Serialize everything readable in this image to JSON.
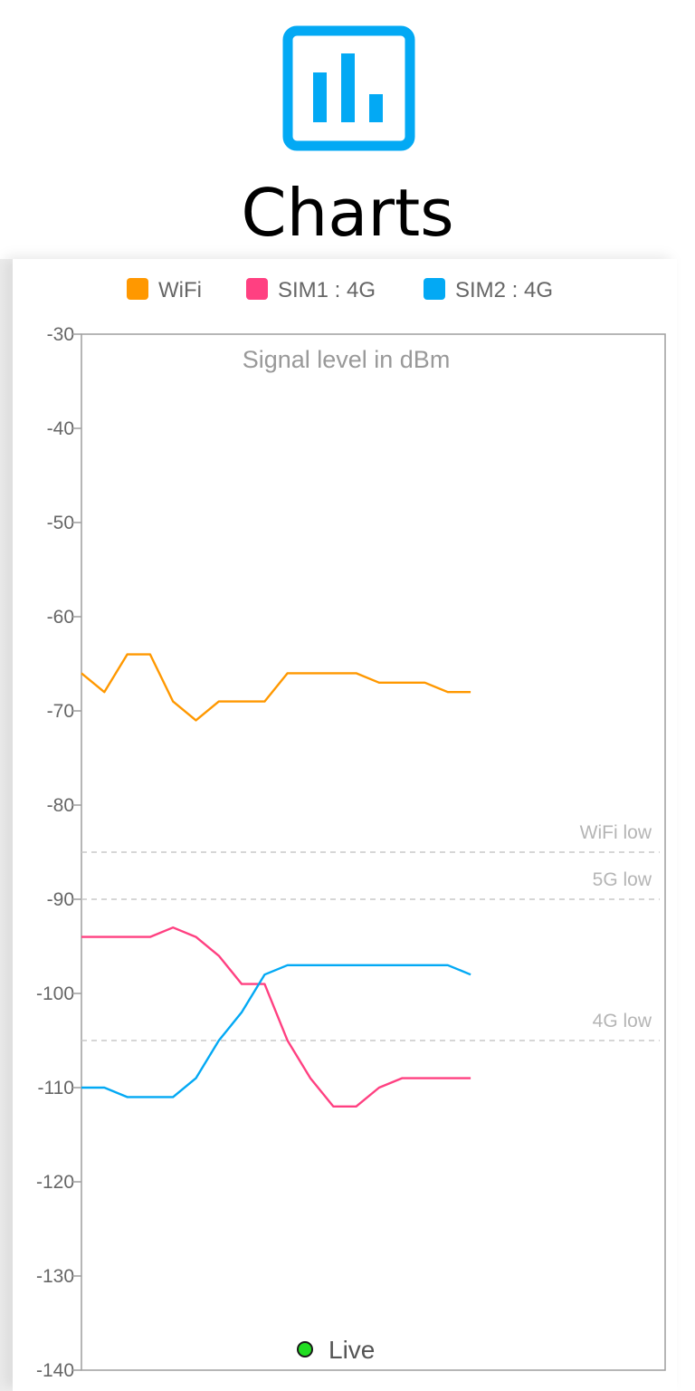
{
  "app": {
    "title": "Charts",
    "icon": "bar-chart-icon",
    "accent": "#03a9f4"
  },
  "live": {
    "label": "Live",
    "indicator_color": "#22dd22"
  },
  "chart_data": {
    "type": "line",
    "title": "",
    "subtitle": "Signal level in dBm",
    "xlabel": "",
    "ylabel": "",
    "ylim": [
      -140,
      -30
    ],
    "yticks": [
      -30,
      -40,
      -50,
      -60,
      -70,
      -80,
      -90,
      -100,
      -110,
      -120,
      -130,
      -140
    ],
    "x_count": 26,
    "grid": false,
    "legend": "top",
    "series": [
      {
        "name": "WiFi",
        "color": "#ff9800",
        "values": [
          -66,
          -68,
          -64,
          -64,
          -69,
          -71,
          -69,
          -69,
          -69,
          -66,
          -66,
          -66,
          -66,
          -67,
          -67,
          -67,
          -68,
          -68
        ]
      },
      {
        "name": "SIM1 : 4G",
        "color": "#ff4081",
        "values": [
          -94,
          -94,
          -94,
          -94,
          -93,
          -94,
          -96,
          -99,
          -99,
          -105,
          -109,
          -112,
          -112,
          -110,
          -109,
          -109,
          -109,
          -109
        ]
      },
      {
        "name": "SIM2 : 4G",
        "color": "#03a9f4",
        "values": [
          -110,
          -110,
          -111,
          -111,
          -111,
          -109,
          -105,
          -102,
          -98,
          -97,
          -97,
          -97,
          -97,
          -97,
          -97,
          -97,
          -97,
          -98
        ]
      }
    ],
    "reference_lines": [
      {
        "label": "WiFi low",
        "value": -85
      },
      {
        "label": "5G low",
        "value": -90
      },
      {
        "label": "4G low",
        "value": -105
      }
    ]
  }
}
